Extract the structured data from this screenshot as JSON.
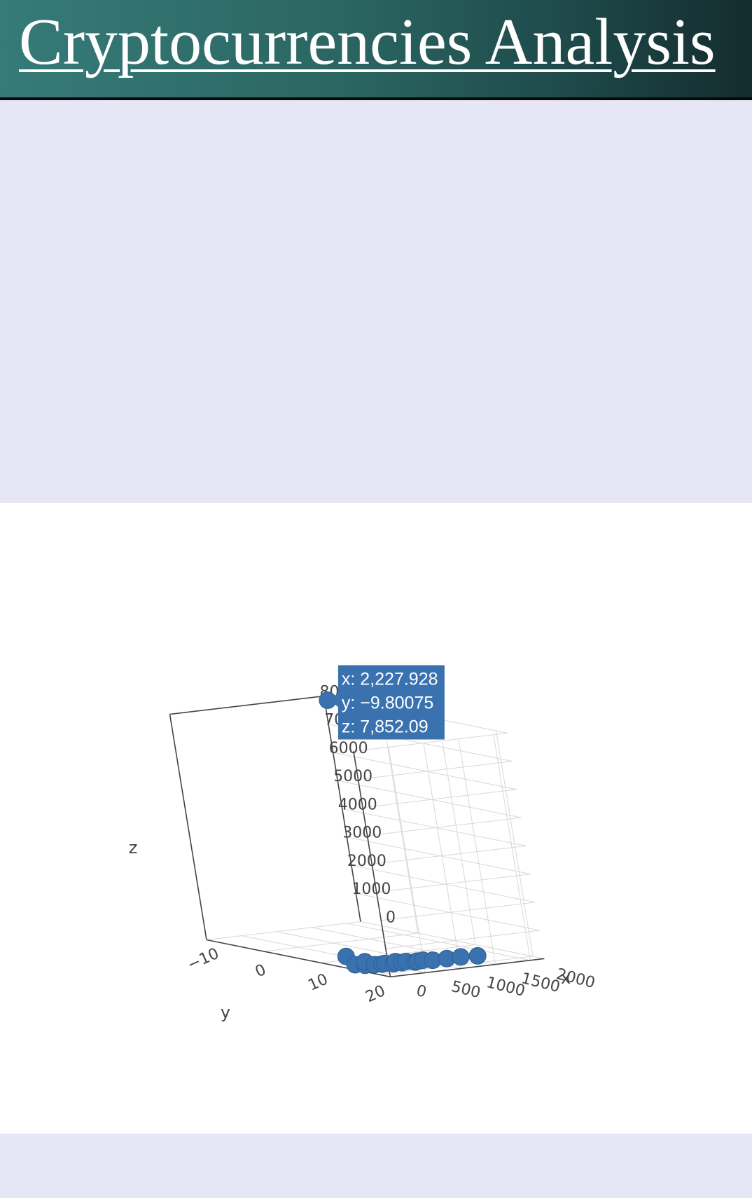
{
  "header": {
    "title": "Cryptocurrencies Analysis"
  },
  "colors": {
    "marker": "#3a72b0",
    "header_start": "#367b78",
    "header_end": "#142c2d",
    "page_bg": "#e6e6f7"
  },
  "chart_data": {
    "type": "scatter3d",
    "title": "",
    "x_axis": {
      "title": "x",
      "range": [
        0,
        2300
      ],
      "ticks": [
        "0",
        "500",
        "1000",
        "1500",
        "2000"
      ]
    },
    "y_axis": {
      "title": "y",
      "range": [
        -12,
        22
      ],
      "ticks": [
        "−10",
        "0",
        "10",
        "20"
      ]
    },
    "z_axis": {
      "title": "z",
      "range": [
        0,
        8000
      ],
      "ticks": [
        "0",
        "1000",
        "2000",
        "3000",
        "4000",
        "5000",
        "6000",
        "7000",
        "8000"
      ]
    },
    "grid": true,
    "points": [
      {
        "x": 2227.928,
        "y": -9.80075,
        "z": 7852.09
      },
      {
        "x": 50,
        "y": 14,
        "z": 380
      },
      {
        "x": 80,
        "y": 15,
        "z": 120
      },
      {
        "x": 180,
        "y": 15.5,
        "z": 90
      },
      {
        "x": 300,
        "y": 14,
        "z": 120
      },
      {
        "x": 350,
        "y": 15,
        "z": 40
      },
      {
        "x": 420,
        "y": 15.5,
        "z": 60
      },
      {
        "x": 500,
        "y": 15,
        "z": 40
      },
      {
        "x": 580,
        "y": 15.5,
        "z": 30
      },
      {
        "x": 650,
        "y": 15,
        "z": 60
      },
      {
        "x": 700,
        "y": 15.5,
        "z": 30
      },
      {
        "x": 800,
        "y": 15,
        "z": 20
      },
      {
        "x": 850,
        "y": 16,
        "z": 30
      },
      {
        "x": 920,
        "y": 15.5,
        "z": 20
      },
      {
        "x": 1000,
        "y": 15.5,
        "z": 30
      },
      {
        "x": 1100,
        "y": 16,
        "z": 20
      },
      {
        "x": 1300,
        "y": 16,
        "z": 20
      },
      {
        "x": 1500,
        "y": 16,
        "z": 20
      },
      {
        "x": 1700,
        "y": 16.5,
        "z": 20
      }
    ],
    "hover": {
      "x_label": "x: 2,227.928",
      "y_label": "y: −9.80075",
      "z_label": "z: 7,852.09"
    }
  }
}
